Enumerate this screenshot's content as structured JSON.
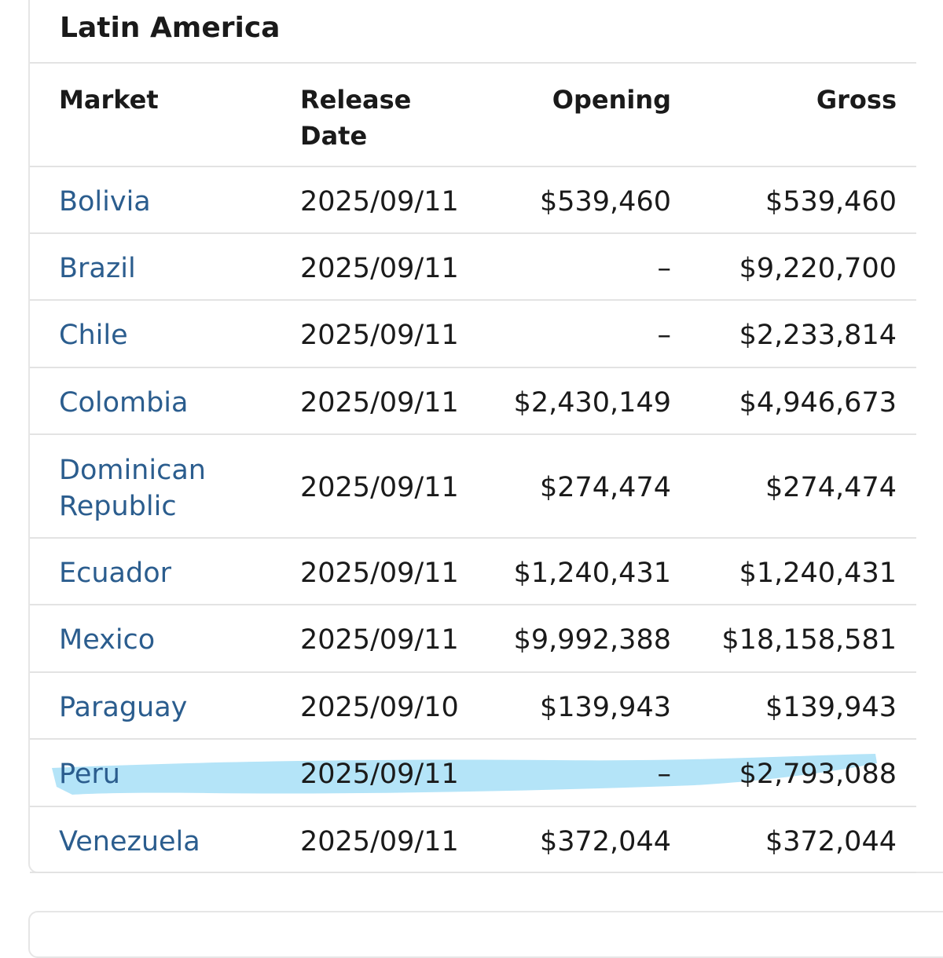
{
  "section": {
    "title": "Latin America"
  },
  "table": {
    "headers": {
      "market": "Market",
      "release_date_line1": "Release",
      "release_date_line2": "Date",
      "opening": "Opening",
      "gross": "Gross"
    },
    "rows": [
      {
        "market": "Bolivia",
        "release_date": "2025/09/11",
        "opening": "$539,460",
        "gross": "$539,460"
      },
      {
        "market": "Brazil",
        "release_date": "2025/09/11",
        "opening": "–",
        "gross": "$9,220,700"
      },
      {
        "market": "Chile",
        "release_date": "2025/09/11",
        "opening": "–",
        "gross": "$2,233,814"
      },
      {
        "market": "Colombia",
        "release_date": "2025/09/11",
        "opening": "$2,430,149",
        "gross": "$4,946,673"
      },
      {
        "market_line1": "Dominican",
        "market_line2": "Republic",
        "release_date": "2025/09/11",
        "opening": "$274,474",
        "gross": "$274,474"
      },
      {
        "market": "Ecuador",
        "release_date": "2025/09/11",
        "opening": "$1,240,431",
        "gross": "$1,240,431"
      },
      {
        "market": "Mexico",
        "release_date": "2025/09/11",
        "opening": "$9,992,388",
        "gross": "$18,158,581"
      },
      {
        "market": "Paraguay",
        "release_date": "2025/09/10",
        "opening": "$139,943",
        "gross": "$139,943"
      },
      {
        "market": "Peru",
        "release_date": "2025/09/11",
        "opening": "–",
        "gross": "$2,793,088"
      },
      {
        "market": "Venezuela",
        "release_date": "2025/09/11",
        "opening": "$372,044",
        "gross": "$372,044"
      }
    ]
  },
  "colors": {
    "link": "#2b5d8e",
    "text": "#1a1a1a",
    "divider": "#e3e3e3",
    "highlight_marker": "#9fdcf6"
  }
}
